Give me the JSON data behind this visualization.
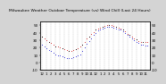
{
  "title": "Milwaukee Weather Outdoor Temperature (vs) Wind Chill (Last 24 Hours)",
  "title_fontsize": 3.2,
  "bg_color": "#d4d4d4",
  "plot_bg_color": "#ffffff",
  "temp_color": "#cc0000",
  "windchill_color": "#0000cc",
  "black_color": "#111111",
  "marker_size": 1.0,
  "ylim": [
    -10,
    55
  ],
  "yticks": [
    -10,
    0,
    10,
    20,
    30,
    40,
    50
  ],
  "ylabel_fontsize": 3.0,
  "xlabel_fontsize": 2.8,
  "grid_color": "#999999",
  "num_points": 48,
  "hours_x": [
    0,
    0.5,
    1,
    1.5,
    2,
    2.5,
    3,
    3.5,
    4,
    4.5,
    5,
    5.5,
    6,
    6.5,
    7,
    7.5,
    8,
    8.5,
    9,
    9.5,
    10,
    10.5,
    11,
    11.5,
    12,
    12.5,
    13,
    13.5,
    14,
    14.5,
    15,
    15.5,
    16,
    16.5,
    17,
    17.5,
    18,
    18.5,
    19,
    19.5,
    20,
    20.5,
    21,
    21.5,
    22,
    22.5,
    23,
    23.5
  ],
  "temp": [
    35,
    33,
    30,
    28,
    26,
    24,
    22,
    21,
    20,
    19,
    18,
    17,
    16,
    16,
    17,
    18,
    19,
    21,
    24,
    28,
    32,
    35,
    38,
    41,
    44,
    46,
    47,
    48,
    49,
    50,
    50,
    50,
    49,
    48,
    47,
    46,
    44,
    42,
    39,
    37,
    35,
    33,
    31,
    29,
    28,
    28,
    27,
    27
  ],
  "windchill": [
    24,
    22,
    19,
    17,
    15,
    13,
    11,
    10,
    9,
    8,
    7,
    6,
    6,
    6,
    7,
    8,
    9,
    11,
    15,
    20,
    25,
    29,
    33,
    37,
    40,
    43,
    45,
    46,
    47,
    48,
    48,
    48,
    47,
    46,
    45,
    44,
    42,
    40,
    37,
    35,
    32,
    30,
    28,
    26,
    24,
    24,
    23,
    23
  ],
  "xtick_positions": [
    0,
    2,
    4,
    6,
    8,
    10,
    12,
    14,
    16,
    18,
    20,
    22,
    24,
    26,
    28,
    30,
    32,
    34,
    36,
    38,
    40,
    42,
    44,
    46
  ],
  "xtick_labels": [
    "12",
    "1",
    "2",
    "3",
    "4",
    "5",
    "6",
    "7",
    "8",
    "9",
    "10",
    "11",
    "12",
    "1",
    "2",
    "3",
    "4",
    "5",
    "6",
    "7",
    "8",
    "9",
    "10",
    "11"
  ],
  "vgrid_positions": [
    0,
    2,
    4,
    6,
    8,
    10,
    12,
    14,
    16,
    18,
    20,
    22,
    24,
    26,
    28,
    30,
    32,
    34,
    36,
    38,
    40,
    42,
    44,
    46
  ]
}
